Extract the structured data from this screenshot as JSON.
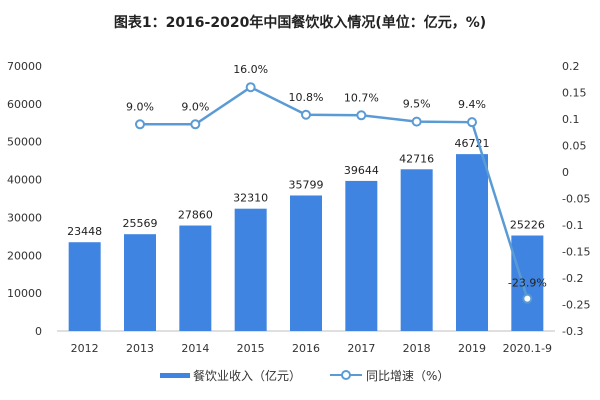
{
  "chart_data": {
    "type": "bar",
    "title": "图表1：2016-2020年中国餐饮收入情况(单位：亿元，%)",
    "categories": [
      "2012",
      "2013",
      "2014",
      "2015",
      "2016",
      "2017",
      "2018",
      "2019",
      "2020.1-9"
    ],
    "series": [
      {
        "name": "餐饮业收入（亿元）",
        "type": "bar",
        "axis": "left",
        "color": "#3f84e0",
        "values": [
          23448,
          25569,
          27860,
          32310,
          35799,
          39644,
          42716,
          46721,
          25226
        ]
      },
      {
        "name": "同比增速（%）",
        "type": "line",
        "axis": "right",
        "color": "#5b9bd5",
        "values": [
          null,
          0.09,
          0.09,
          0.16,
          0.108,
          0.107,
          0.095,
          0.094,
          -0.239
        ],
        "labels": [
          null,
          "9.0%",
          "9.0%",
          "16.0%",
          "10.8%",
          "10.7%",
          "9.5%",
          "9.4%",
          "-23.9%"
        ]
      }
    ],
    "left_axis": {
      "ylim": [
        0,
        70000
      ],
      "ticks": [
        "0",
        "10000",
        "20000",
        "30000",
        "40000",
        "50000",
        "60000",
        "70000"
      ]
    },
    "right_axis": {
      "ylim": [
        -0.3,
        0.2
      ],
      "ticks": [
        "-0.3",
        "-0.25",
        "-0.2",
        "-0.15",
        "-0.1",
        "-0.05",
        "0",
        "0.05",
        "0.1",
        "0.15",
        "0.2"
      ]
    },
    "grid": false,
    "legend": "bottom"
  }
}
